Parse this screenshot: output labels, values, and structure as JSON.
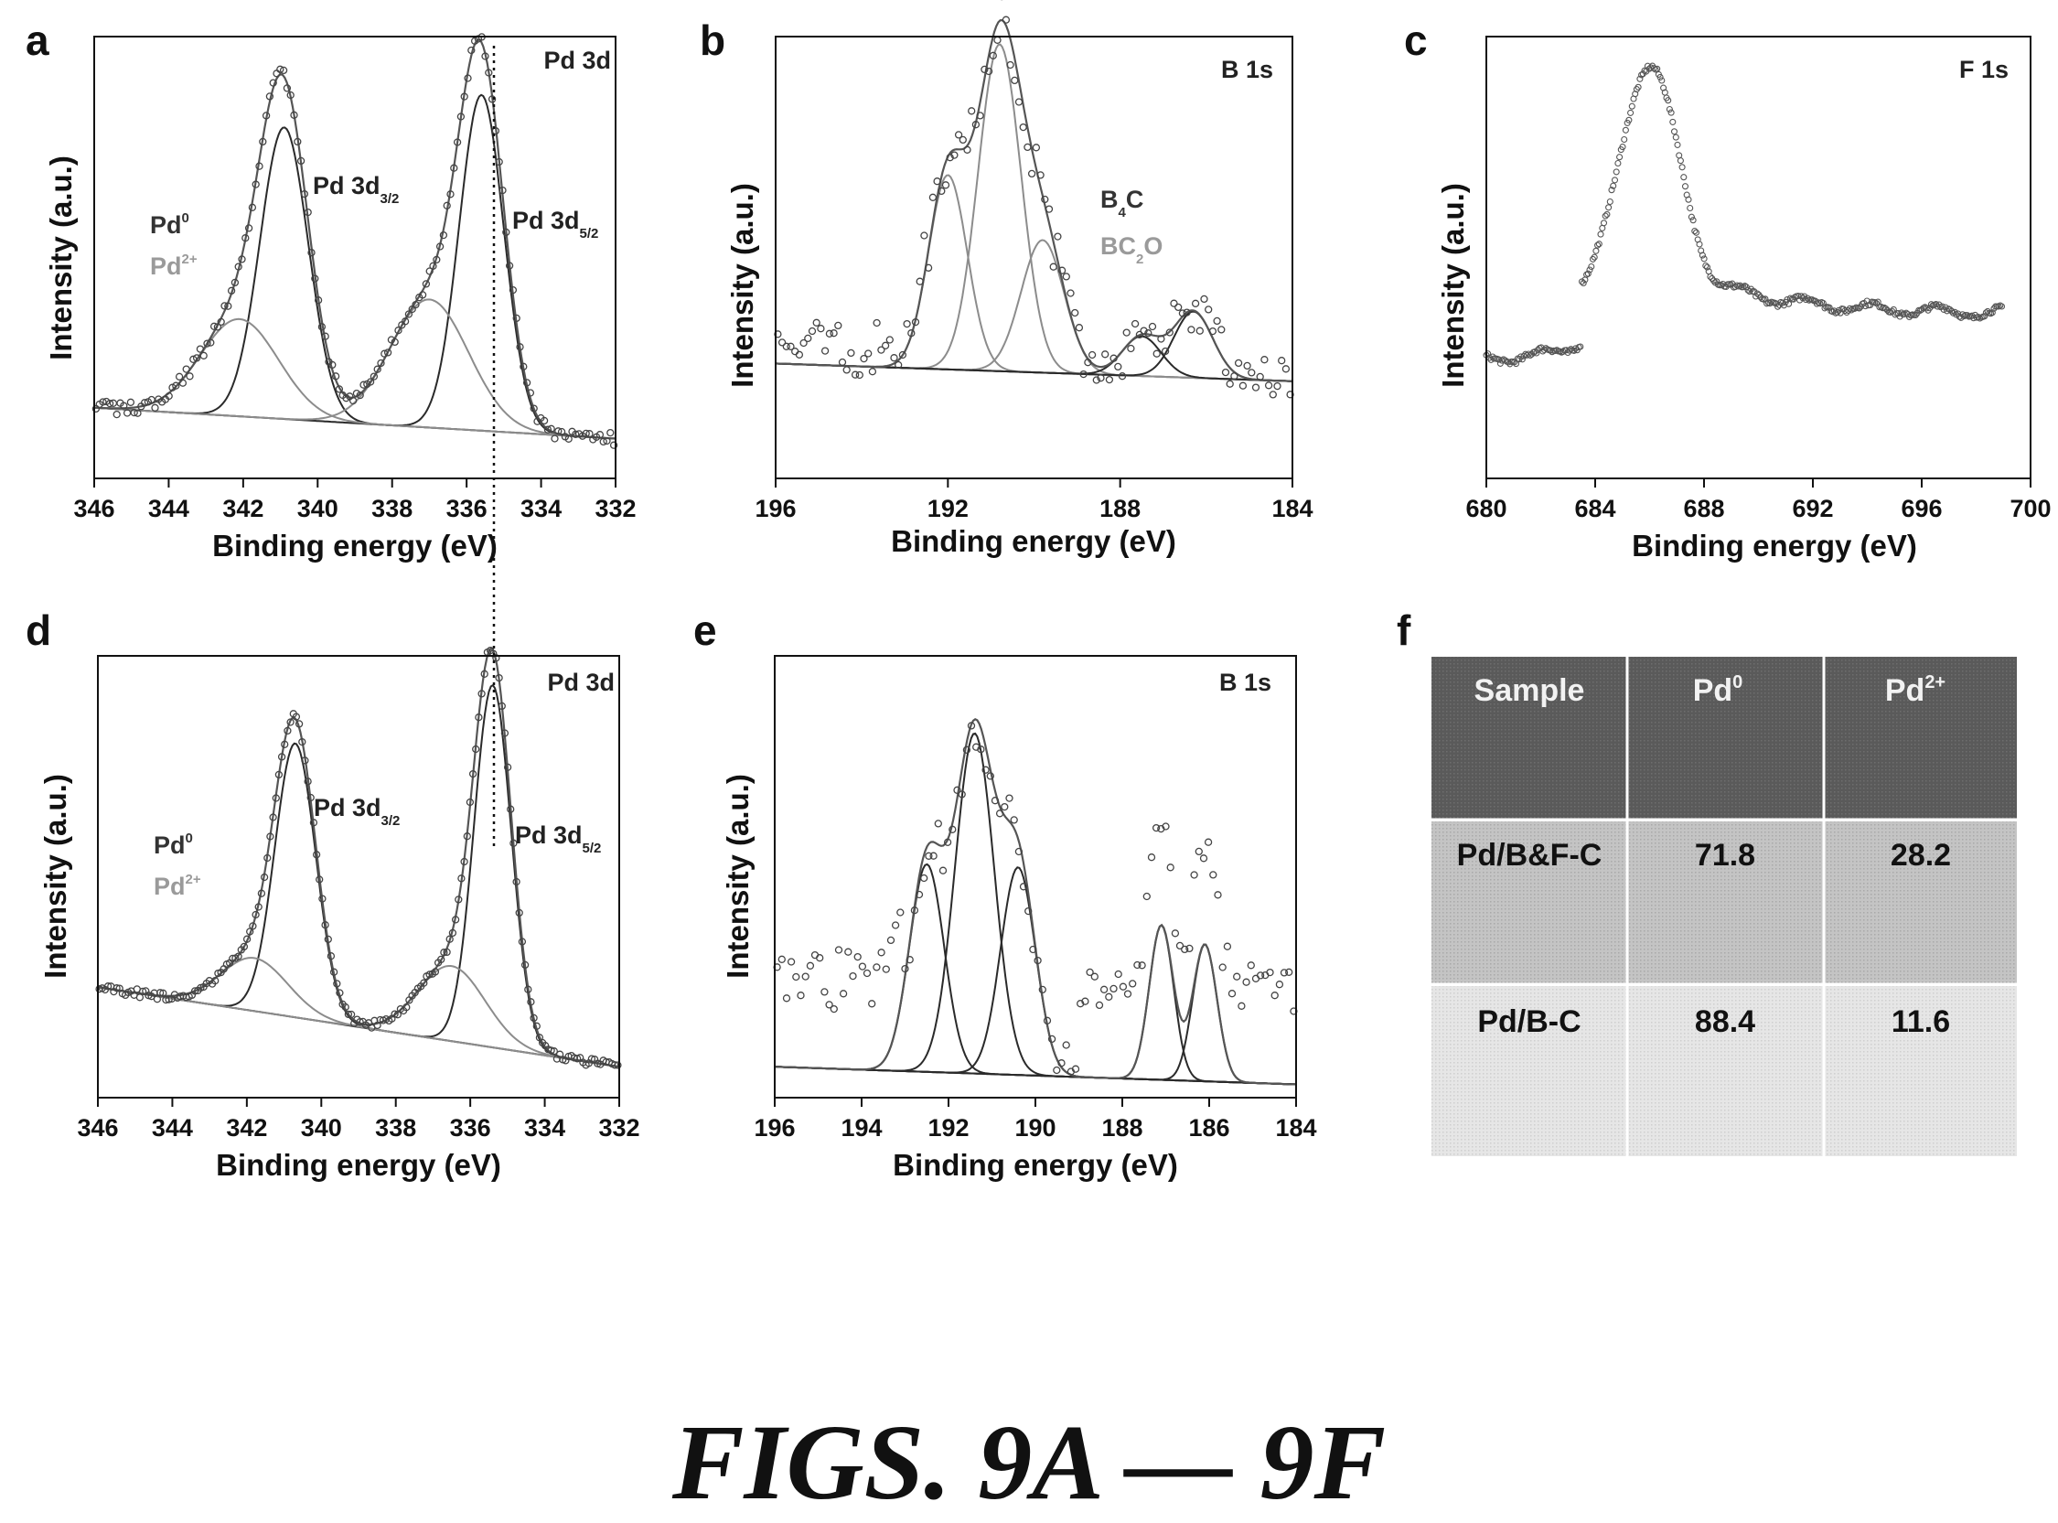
{
  "caption": "FIGS. 9A — 9F",
  "chart_data": [
    {
      "panel": "a",
      "type": "scatter",
      "title": "Pd 3d",
      "xlabel": "Binding energy (eV)",
      "ylabel": "Intensity (a.u.)",
      "xlim": [
        346,
        332
      ],
      "x_ticks": [
        "346",
        "344",
        "342",
        "340",
        "338",
        "336",
        "334",
        "332"
      ],
      "reference_line_x": 335.4,
      "annotations": [
        "Pd 3d3/2",
        "Pd 3d5/2"
      ],
      "legend": [
        {
          "text": "Pd0",
          "color": "#333333"
        },
        {
          "text": "Pd2+",
          "color": "#9a9a9a"
        }
      ],
      "peaks": [
        {
          "species": "Pd0",
          "center": 340.9,
          "height": 0.66,
          "width": 0.65
        },
        {
          "species": "Pd0",
          "center": 335.6,
          "height": 0.76,
          "width": 0.6
        },
        {
          "species": "Pd2+",
          "center": 342.1,
          "height": 0.22,
          "width": 1.05
        },
        {
          "species": "Pd2+",
          "center": 337.0,
          "height": 0.29,
          "width": 1.05
        }
      ],
      "baseline": [
        0.16,
        0.09
      ]
    },
    {
      "panel": "b",
      "type": "scatter",
      "title": "B 1s",
      "xlabel": "Binding energy (eV)",
      "ylabel": "Intensity (a.u.)",
      "xlim": [
        196,
        184
      ],
      "x_ticks": [
        "196",
        "192",
        "188",
        "184"
      ],
      "legend": [
        {
          "text": "B4C",
          "color": "#333333"
        },
        {
          "text": "BC2O",
          "color": "#9a9a9a"
        }
      ],
      "peaks": [
        {
          "species": "BC2O",
          "center": 192.0,
          "height": 0.44,
          "width": 0.45
        },
        {
          "species": "BC2O",
          "center": 190.8,
          "height": 0.74,
          "width": 0.5
        },
        {
          "species": "BC2O",
          "center": 189.8,
          "height": 0.3,
          "width": 0.5
        },
        {
          "species": "B4C",
          "center": 187.5,
          "height": 0.09,
          "width": 0.45
        },
        {
          "species": "B4C",
          "center": 186.3,
          "height": 0.15,
          "width": 0.45
        }
      ],
      "baseline": [
        0.26,
        0.22
      ]
    },
    {
      "panel": "c",
      "type": "scatter",
      "title": "F 1s",
      "xlabel": "Binding energy (eV)",
      "ylabel": "Intensity (a.u.)",
      "xlim": [
        680,
        700
      ],
      "x_ticks": [
        "680",
        "684",
        "688",
        "692",
        "696",
        "700"
      ],
      "peak_center": 686.0,
      "data_range": [
        680,
        699
      ]
    },
    {
      "panel": "d",
      "type": "scatter",
      "title": "Pd 3d",
      "xlabel": "Binding energy (eV)",
      "ylabel": "Intensity (a.u.)",
      "xlim": [
        346,
        332
      ],
      "x_ticks": [
        "346",
        "344",
        "342",
        "340",
        "338",
        "336",
        "334",
        "332"
      ],
      "annotations": [
        "Pd 3d3/2",
        "Pd 3d5/2"
      ],
      "legend": [
        {
          "text": "Pd0",
          "color": "#333333"
        },
        {
          "text": "Pd2+",
          "color": "#9a9a9a"
        }
      ],
      "peaks": [
        {
          "species": "Pd0",
          "center": 340.7,
          "height": 0.62,
          "width": 0.55
        },
        {
          "species": "Pd0",
          "center": 335.4,
          "height": 0.82,
          "width": 0.5
        },
        {
          "species": "Pd2+",
          "center": 341.8,
          "height": 0.12,
          "width": 0.9
        },
        {
          "species": "Pd2+",
          "center": 336.5,
          "height": 0.17,
          "width": 0.9
        }
      ],
      "baseline": [
        0.25,
        0.07
      ]
    },
    {
      "panel": "e",
      "type": "scatter",
      "title": "B 1s",
      "xlabel": "Binding energy (eV)",
      "ylabel": "Intensity (a.u.)",
      "xlim": [
        196,
        184
      ],
      "x_ticks": [
        "196",
        "194",
        "192",
        "190",
        "188",
        "186",
        "184"
      ],
      "peaks": [
        {
          "center": 192.5,
          "height": 0.47,
          "width": 0.4
        },
        {
          "center": 191.4,
          "height": 0.77,
          "width": 0.45
        },
        {
          "center": 190.4,
          "height": 0.47,
          "width": 0.4
        },
        {
          "center": 187.1,
          "height": 0.35,
          "width": 0.28
        },
        {
          "center": 186.1,
          "height": 0.31,
          "width": 0.28
        }
      ],
      "baseline": [
        0.07,
        0.03
      ]
    },
    {
      "panel": "f",
      "type": "table",
      "columns": [
        "Sample",
        "Pd0",
        "Pd2+"
      ],
      "rows": [
        [
          "Pd/B&F-C",
          "71.8",
          "28.2"
        ],
        [
          "Pd/B-C",
          "88.4",
          "11.6"
        ]
      ]
    }
  ]
}
